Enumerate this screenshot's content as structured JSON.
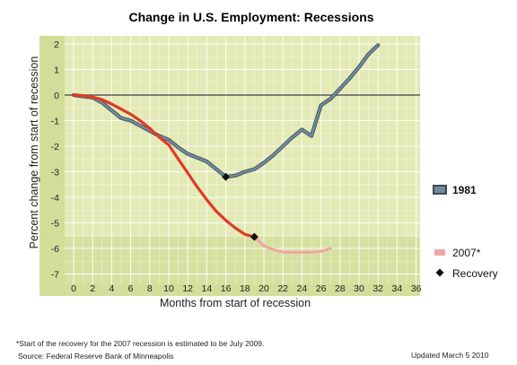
{
  "chart_data": {
    "type": "line",
    "title": "Change in U.S. Employment: Recessions",
    "xlabel": "Months from start of recession",
    "ylabel": "Percent change from start of recession",
    "xlim": [
      -1,
      36
    ],
    "ylim": [
      -7,
      2
    ],
    "x_ticks": [
      0,
      2,
      4,
      6,
      8,
      10,
      12,
      14,
      16,
      18,
      20,
      22,
      24,
      26,
      28,
      30,
      32,
      34,
      36
    ],
    "y_ticks": [
      2,
      1,
      0,
      -1,
      -2,
      -3,
      -4,
      -5,
      -6,
      -7
    ],
    "grid": true,
    "legend_position": "right",
    "colors": {
      "plot_bg": "#e3eab6",
      "plot_bg_dark": "#d2dd9a",
      "grid": "#ffffff",
      "zero_line": "#5a5a5a",
      "series_1981": "#6f8a9c",
      "series_1981_outline": "#3f4a55",
      "series_2007": "#e03a24",
      "series_2007_projected": "#f0a7a7",
      "recovery_marker": "#111111"
    },
    "series": [
      {
        "name": "1981",
        "x": [
          0,
          1,
          2,
          3,
          4,
          5,
          6,
          7,
          8,
          9,
          10,
          11,
          12,
          13,
          14,
          15,
          16,
          17,
          18,
          19,
          20,
          21,
          22,
          23,
          24,
          25,
          26,
          27,
          28,
          29,
          30,
          31,
          32
        ],
        "values": [
          0,
          -0.05,
          -0.1,
          -0.3,
          -0.6,
          -0.9,
          -1.0,
          -1.2,
          -1.4,
          -1.6,
          -1.75,
          -2.05,
          -2.3,
          -2.45,
          -2.6,
          -2.9,
          -3.2,
          -3.15,
          -3.0,
          -2.9,
          -2.65,
          -2.35,
          -2.0,
          -1.65,
          -1.35,
          -1.6,
          -0.4,
          -0.15,
          0.25,
          0.65,
          1.1,
          1.6,
          1.95
        ]
      },
      {
        "name": "2007",
        "x": [
          0,
          1,
          2,
          3,
          4,
          5,
          6,
          7,
          8,
          9,
          10,
          11,
          12,
          13,
          14,
          15,
          16,
          17,
          18,
          19
        ],
        "values": [
          0,
          -0.02,
          -0.08,
          -0.18,
          -0.35,
          -0.55,
          -0.75,
          -1.0,
          -1.3,
          -1.65,
          -1.95,
          -2.5,
          -3.05,
          -3.6,
          -4.1,
          -4.55,
          -4.9,
          -5.2,
          -5.45,
          -5.55
        ]
      },
      {
        "name": "2007*",
        "x": [
          19,
          20,
          21,
          22,
          23,
          24,
          25,
          26,
          27
        ],
        "values": [
          -5.55,
          -5.9,
          -6.05,
          -6.15,
          -6.15,
          -6.15,
          -6.15,
          -6.12,
          -6.0
        ]
      }
    ],
    "recovery_points": [
      {
        "series": "1981",
        "x": 16,
        "y": -3.2
      },
      {
        "series": "2007",
        "x": 19,
        "y": -5.55
      }
    ],
    "legend": [
      {
        "label": "1981",
        "kind": "line"
      },
      {
        "label": "2007*",
        "kind": "line"
      },
      {
        "label": "Recovery",
        "kind": "marker"
      }
    ]
  },
  "footer": {
    "footnote": "*Start of the recovery for the 2007 recession is estimated to be July 2009.",
    "source": "Source: Federal Reserve Bank of Minneapolis",
    "updated": "Updated March 5 2010"
  }
}
